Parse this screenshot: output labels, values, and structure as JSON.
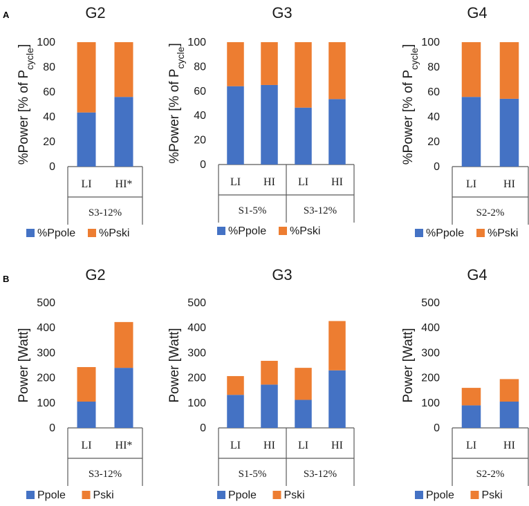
{
  "panel_labels": {
    "a": "A",
    "b": "B"
  },
  "colors": {
    "pole": "#4472C4",
    "ski": "#ED7D31",
    "axis": "#595959"
  },
  "chart_data": [
    {
      "id": "a-g2",
      "type": "bar",
      "stacked": true,
      "title": "G2",
      "ylabel": "%Power [% of P",
      "ylabel_sub": "cycle",
      "ylabel_end": "]",
      "ylim": [
        0,
        100
      ],
      "yticks": [
        "0",
        "20",
        "40",
        "60",
        "80",
        "100"
      ],
      "categories": [
        "LI",
        "HI*"
      ],
      "groups": [
        "S3-12%"
      ],
      "series": [
        {
          "name": "%Ppole",
          "values": [
            43.5,
            56
          ]
        },
        {
          "name": "%Pski",
          "values": [
            56.5,
            44
          ]
        }
      ]
    },
    {
      "id": "a-g3",
      "type": "bar",
      "stacked": true,
      "title": "G3",
      "ylabel": "%Power [% of P",
      "ylabel_sub": "cycle",
      "ylabel_end": "]",
      "ylim": [
        0,
        100
      ],
      "yticks": [
        "0",
        "20",
        "40",
        "60",
        "80",
        "100"
      ],
      "categories": [
        "LI",
        "HI",
        "LI",
        "HI"
      ],
      "groups": [
        "S1-5%",
        "S3-12%"
      ],
      "series": [
        {
          "name": "%Ppole",
          "values": [
            64,
            65,
            46.5,
            53.5
          ]
        },
        {
          "name": "%Pski",
          "values": [
            36,
            35,
            53.5,
            46.5
          ]
        }
      ]
    },
    {
      "id": "a-g4",
      "type": "bar",
      "stacked": true,
      "title": "G4",
      "ylabel": "%Power [% of P",
      "ylabel_sub": "cycle",
      "ylabel_end": "]",
      "ylim": [
        0,
        100
      ],
      "yticks": [
        "0",
        "20",
        "40",
        "60",
        "80",
        "100"
      ],
      "categories": [
        "LI",
        "HI"
      ],
      "groups": [
        "S2-2%"
      ],
      "series": [
        {
          "name": "%Ppole",
          "values": [
            56,
            54.5
          ]
        },
        {
          "name": "%Pski",
          "values": [
            44,
            45.5
          ]
        }
      ]
    },
    {
      "id": "b-g2",
      "type": "bar",
      "stacked": true,
      "title": "G2",
      "ylabel": "Power [Watt]",
      "ylabel_sub": "",
      "ylabel_end": "",
      "ylim": [
        0,
        500
      ],
      "yticks": [
        "0",
        "100",
        "200",
        "300",
        "400",
        "500"
      ],
      "categories": [
        "LI",
        "HI*"
      ],
      "groups": [
        "S3-12%"
      ],
      "series": [
        {
          "name": "Ppole",
          "values": [
            105,
            240
          ]
        },
        {
          "name": "Pski",
          "values": [
            138,
            183
          ]
        }
      ]
    },
    {
      "id": "b-g3",
      "type": "bar",
      "stacked": true,
      "title": "G3",
      "ylabel": "Power [Watt]",
      "ylabel_sub": "",
      "ylabel_end": "",
      "ylim": [
        0,
        500
      ],
      "yticks": [
        "0",
        "100",
        "200",
        "300",
        "400",
        "500"
      ],
      "categories": [
        "LI",
        "HI",
        "LI",
        "HI"
      ],
      "groups": [
        "S1-5%",
        "S3-12%"
      ],
      "series": [
        {
          "name": "Ppole",
          "values": [
            132,
            173,
            112,
            230
          ]
        },
        {
          "name": "Pski",
          "values": [
            75,
            95,
            128,
            197
          ]
        }
      ]
    },
    {
      "id": "b-g4",
      "type": "bar",
      "stacked": true,
      "title": "G4",
      "ylabel": "Power [Watt]",
      "ylabel_sub": "",
      "ylabel_end": "",
      "ylim": [
        0,
        500
      ],
      "yticks": [
        "0",
        "100",
        "200",
        "300",
        "400",
        "500"
      ],
      "categories": [
        "LI",
        "HI"
      ],
      "groups": [
        "S2-2%"
      ],
      "series": [
        {
          "name": "Ppole",
          "values": [
            90,
            105
          ]
        },
        {
          "name": "Pski",
          "values": [
            70,
            90
          ]
        }
      ]
    }
  ]
}
